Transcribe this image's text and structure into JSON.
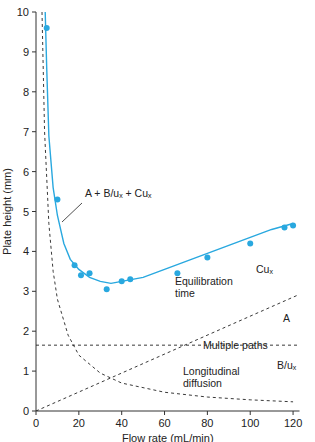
{
  "chart_data": {
    "type": "line",
    "x_label": "Flow rate (mL/min)",
    "y_label": "Plate height (mm)",
    "xlim": [
      0,
      123
    ],
    "xticks": [
      0,
      20,
      40,
      60,
      80,
      100,
      120
    ],
    "ylim": [
      0,
      10
    ],
    "yticks": [
      0,
      1,
      2,
      3,
      4,
      5,
      6,
      7,
      8,
      9,
      10
    ],
    "grid": false,
    "annotations": [
      "A + B/uₓ + Cuₓ",
      "Equilibration time",
      "Cuₓ",
      "A",
      "Multiple paths",
      "Longitudinal diffusion",
      "B/uₓ"
    ],
    "series": [
      {
        "type": "scatter",
        "color": "#29a8df",
        "marker": "circle",
        "x": [
          5,
          10,
          18,
          21,
          25,
          33,
          40,
          44,
          66,
          80,
          100,
          116,
          120
        ],
        "values": [
          9.6,
          5.3,
          3.65,
          3.4,
          3.45,
          3.05,
          3.25,
          3.3,
          3.45,
          3.85,
          4.2,
          4.6,
          4.65
        ]
      },
      {
        "type": "line",
        "color": "#29a8df",
        "line_style": "solid",
        "x": [
          4.3,
          5,
          6,
          8,
          10,
          13,
          16,
          20,
          25,
          30,
          35,
          40,
          50,
          60,
          70,
          80,
          90,
          100,
          110,
          120
        ],
        "values": [
          10,
          8.6,
          6.9,
          5.6,
          4.9,
          4.2,
          3.8,
          3.55,
          3.35,
          3.25,
          3.2,
          3.25,
          3.35,
          3.55,
          3.75,
          3.95,
          4.15,
          4.35,
          4.55,
          4.7
        ]
      },
      {
        "type": "line",
        "color": "#222222",
        "line_style": "dashed",
        "x": [
          0,
          122
        ],
        "values": [
          0,
          2.9
        ]
      },
      {
        "type": "line",
        "color": "#222222",
        "line_style": "dashed",
        "x": [
          0,
          122
        ],
        "values": [
          1.65,
          1.65
        ]
      },
      {
        "type": "line",
        "color": "#222222",
        "line_style": "dashed",
        "x": [
          2.8,
          4,
          6,
          8,
          10,
          15,
          20,
          30,
          40,
          60,
          80,
          100,
          120
        ],
        "values": [
          10,
          7,
          4.7,
          3.5,
          2.8,
          1.9,
          1.4,
          0.95,
          0.7,
          0.47,
          0.35,
          0.28,
          0.23
        ]
      }
    ]
  }
}
